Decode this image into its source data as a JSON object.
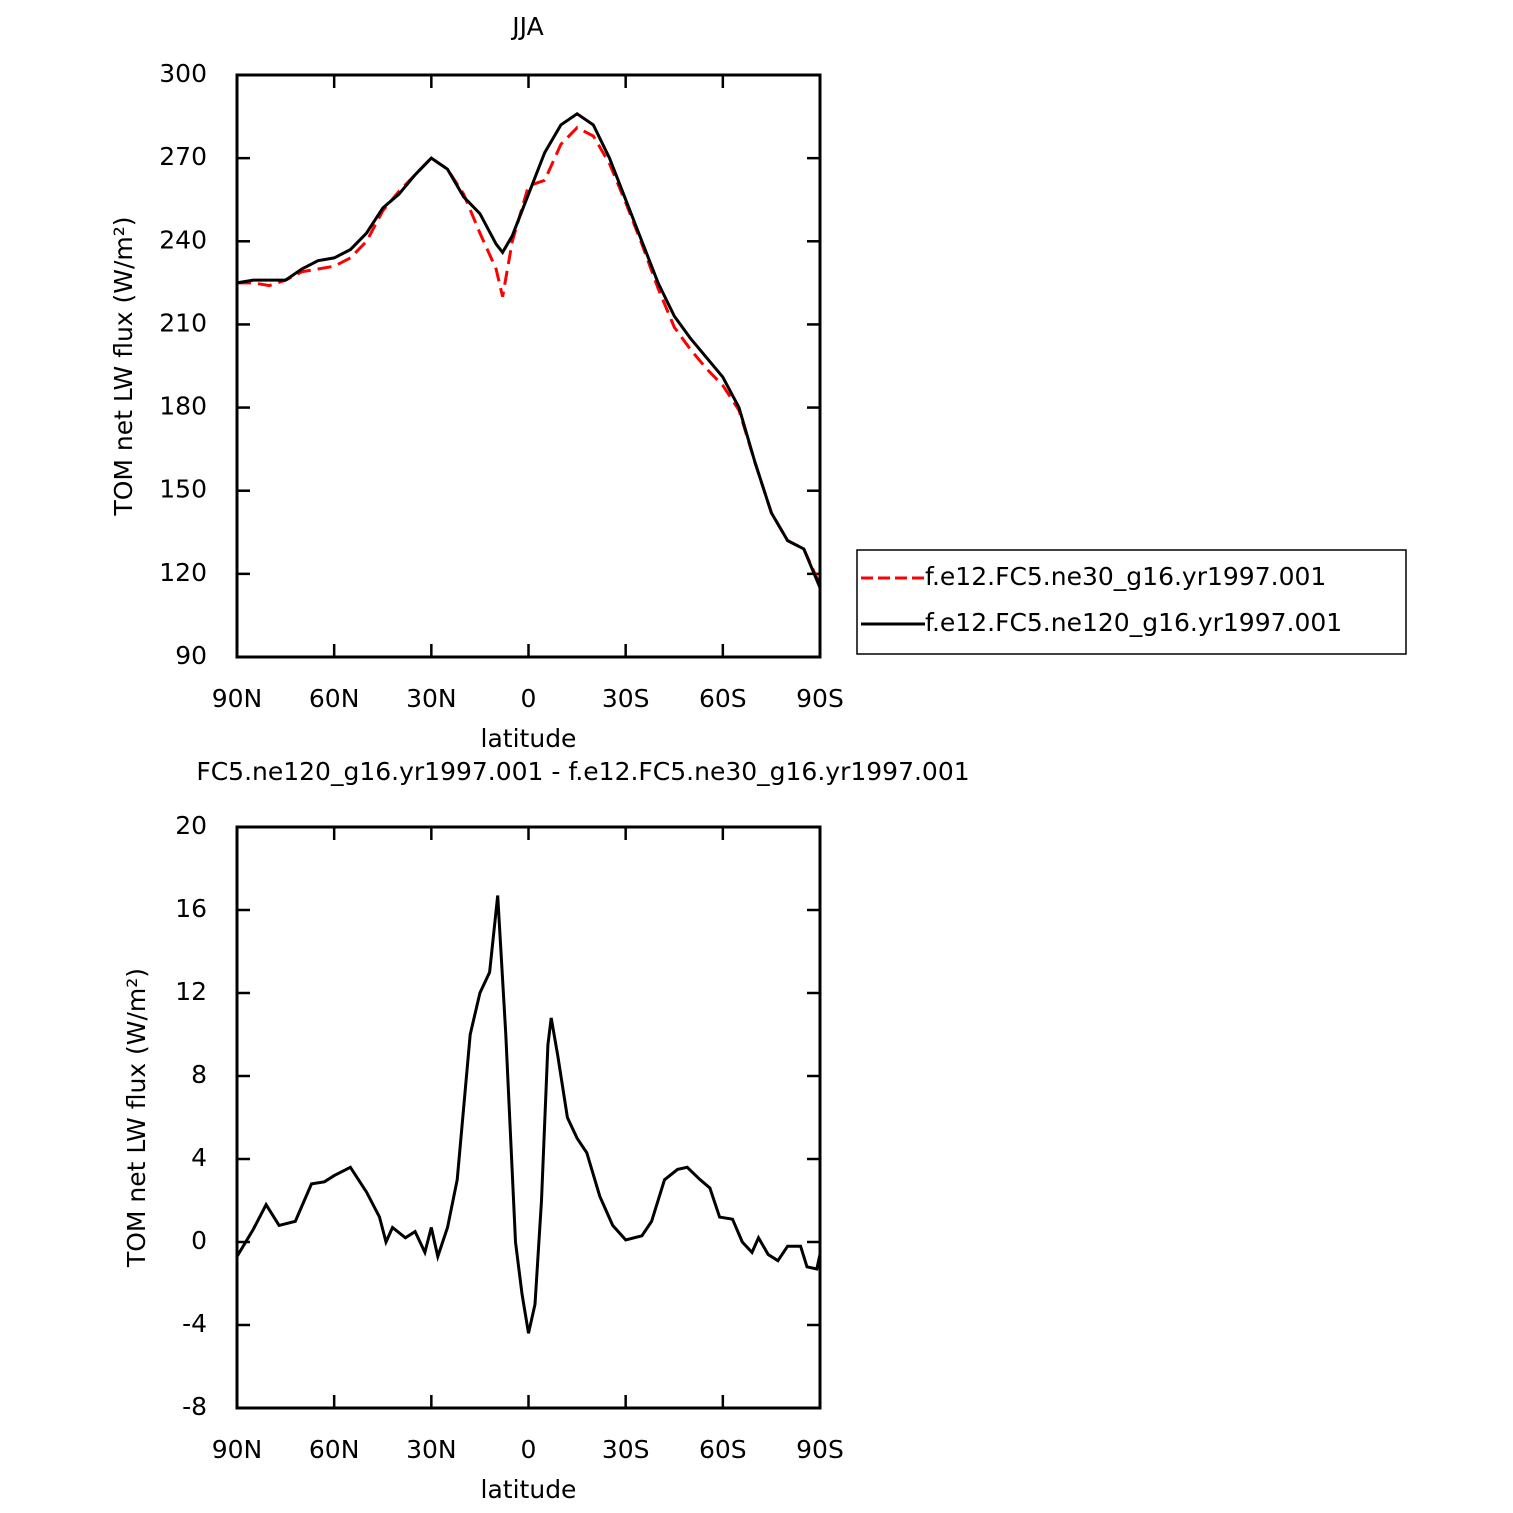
{
  "chart_data": [
    {
      "type": "line",
      "title": "JJA",
      "x_label": "latitude",
      "y_label": "TOM net LW flux (W/m²)",
      "xlim": [
        90,
        -90
      ],
      "xticks": [
        {
          "value": 90,
          "label": "90N"
        },
        {
          "value": 60,
          "label": "60N"
        },
        {
          "value": 30,
          "label": "30N"
        },
        0,
        {
          "value": -30,
          "label": "30S"
        },
        {
          "value": -60,
          "label": "60S"
        },
        {
          "value": -90,
          "label": "90S"
        }
      ],
      "ylim": [
        90,
        300
      ],
      "yticks": [
        90,
        120,
        150,
        180,
        210,
        240,
        270,
        300
      ],
      "legend": "right",
      "x": [
        90,
        85,
        80,
        75,
        70,
        65,
        60,
        55,
        50,
        45,
        40,
        35,
        30,
        25,
        20,
        15,
        10,
        8,
        5,
        0,
        -5,
        -10,
        -15,
        -20,
        -25,
        -30,
        -35,
        -40,
        -45,
        -50,
        -55,
        -60,
        -65,
        -70,
        -75,
        -80,
        -85,
        -90
      ],
      "series": [
        {
          "name": "f.e12.FC5.ne30_g16.yr1997.001",
          "color": "#ff0000",
          "dash": true,
          "values": [
            225,
            225,
            224,
            226,
            229,
            230,
            231,
            234,
            240,
            251,
            258,
            264,
            270,
            266,
            257,
            243,
            230,
            220,
            240,
            260,
            262,
            275,
            281,
            278,
            268,
            254,
            239,
            223,
            209,
            201,
            194,
            188,
            179,
            160,
            142,
            132,
            129,
            116
          ]
        },
        {
          "name": "f.e12.FC5.ne120_g16.yr1997.001",
          "color": "#000000",
          "dash": false,
          "values": [
            225,
            226,
            226,
            226,
            230,
            233,
            234,
            237,
            243,
            252,
            257,
            264,
            270,
            266,
            256,
            250,
            239,
            236,
            242,
            257,
            272,
            282,
            286,
            282,
            270,
            255,
            240,
            225,
            213,
            205,
            198,
            191,
            180,
            160,
            142,
            132,
            129,
            115
          ]
        }
      ]
    },
    {
      "type": "line",
      "title": "FC5.ne120_g16.yr1997.001 - f.e12.FC5.ne30_g16.yr1997.001",
      "x_label": "latitude",
      "y_label": "TOM net LW flux (W/m²)",
      "xlim": [
        90,
        -90
      ],
      "xticks": [
        {
          "value": 90,
          "label": "90N"
        },
        {
          "value": 60,
          "label": "60N"
        },
        {
          "value": 30,
          "label": "30N"
        },
        0,
        {
          "value": -30,
          "label": "30S"
        },
        {
          "value": -60,
          "label": "60S"
        },
        {
          "value": -90,
          "label": "90S"
        }
      ],
      "ylim": [
        -8,
        20
      ],
      "yticks": [
        -8,
        -4,
        0,
        4,
        8,
        12,
        16,
        20
      ],
      "color": "#000000",
      "x": [
        90,
        85,
        81,
        77,
        72,
        67,
        63,
        60,
        55,
        50,
        46,
        44,
        42,
        38,
        35,
        32,
        30,
        28,
        25,
        22,
        18,
        15,
        12,
        9.5,
        7,
        4,
        2,
        0,
        -2,
        -4,
        -6,
        -7,
        -9,
        -12,
        -15,
        -18,
        -22,
        -26,
        -30,
        -35,
        -38,
        -42,
        -46,
        -49,
        -53,
        -56,
        -59,
        -63,
        -66,
        -69,
        -71,
        -74,
        -77,
        -80,
        -84,
        -86,
        -89,
        -90
      ],
      "values": [
        -0.7,
        0.6,
        1.8,
        0.8,
        1,
        2.8,
        2.9,
        3.2,
        3.6,
        2.4,
        1.2,
        0,
        0.7,
        0.2,
        0.5,
        -0.5,
        0.7,
        -0.7,
        0.7,
        3,
        10,
        12,
        13,
        16.7,
        10,
        0,
        -2.5,
        -4.4,
        -3,
        2,
        9.5,
        10.8,
        9,
        6,
        5,
        4.3,
        2.2,
        0.8,
        0.1,
        0.3,
        1,
        3,
        3.5,
        3.6,
        3,
        2.6,
        1.2,
        1.1,
        0,
        -0.5,
        0.2,
        -0.6,
        -0.9,
        -0.2,
        -0.2,
        -1.2,
        -1.3,
        -0.6
      ]
    }
  ]
}
